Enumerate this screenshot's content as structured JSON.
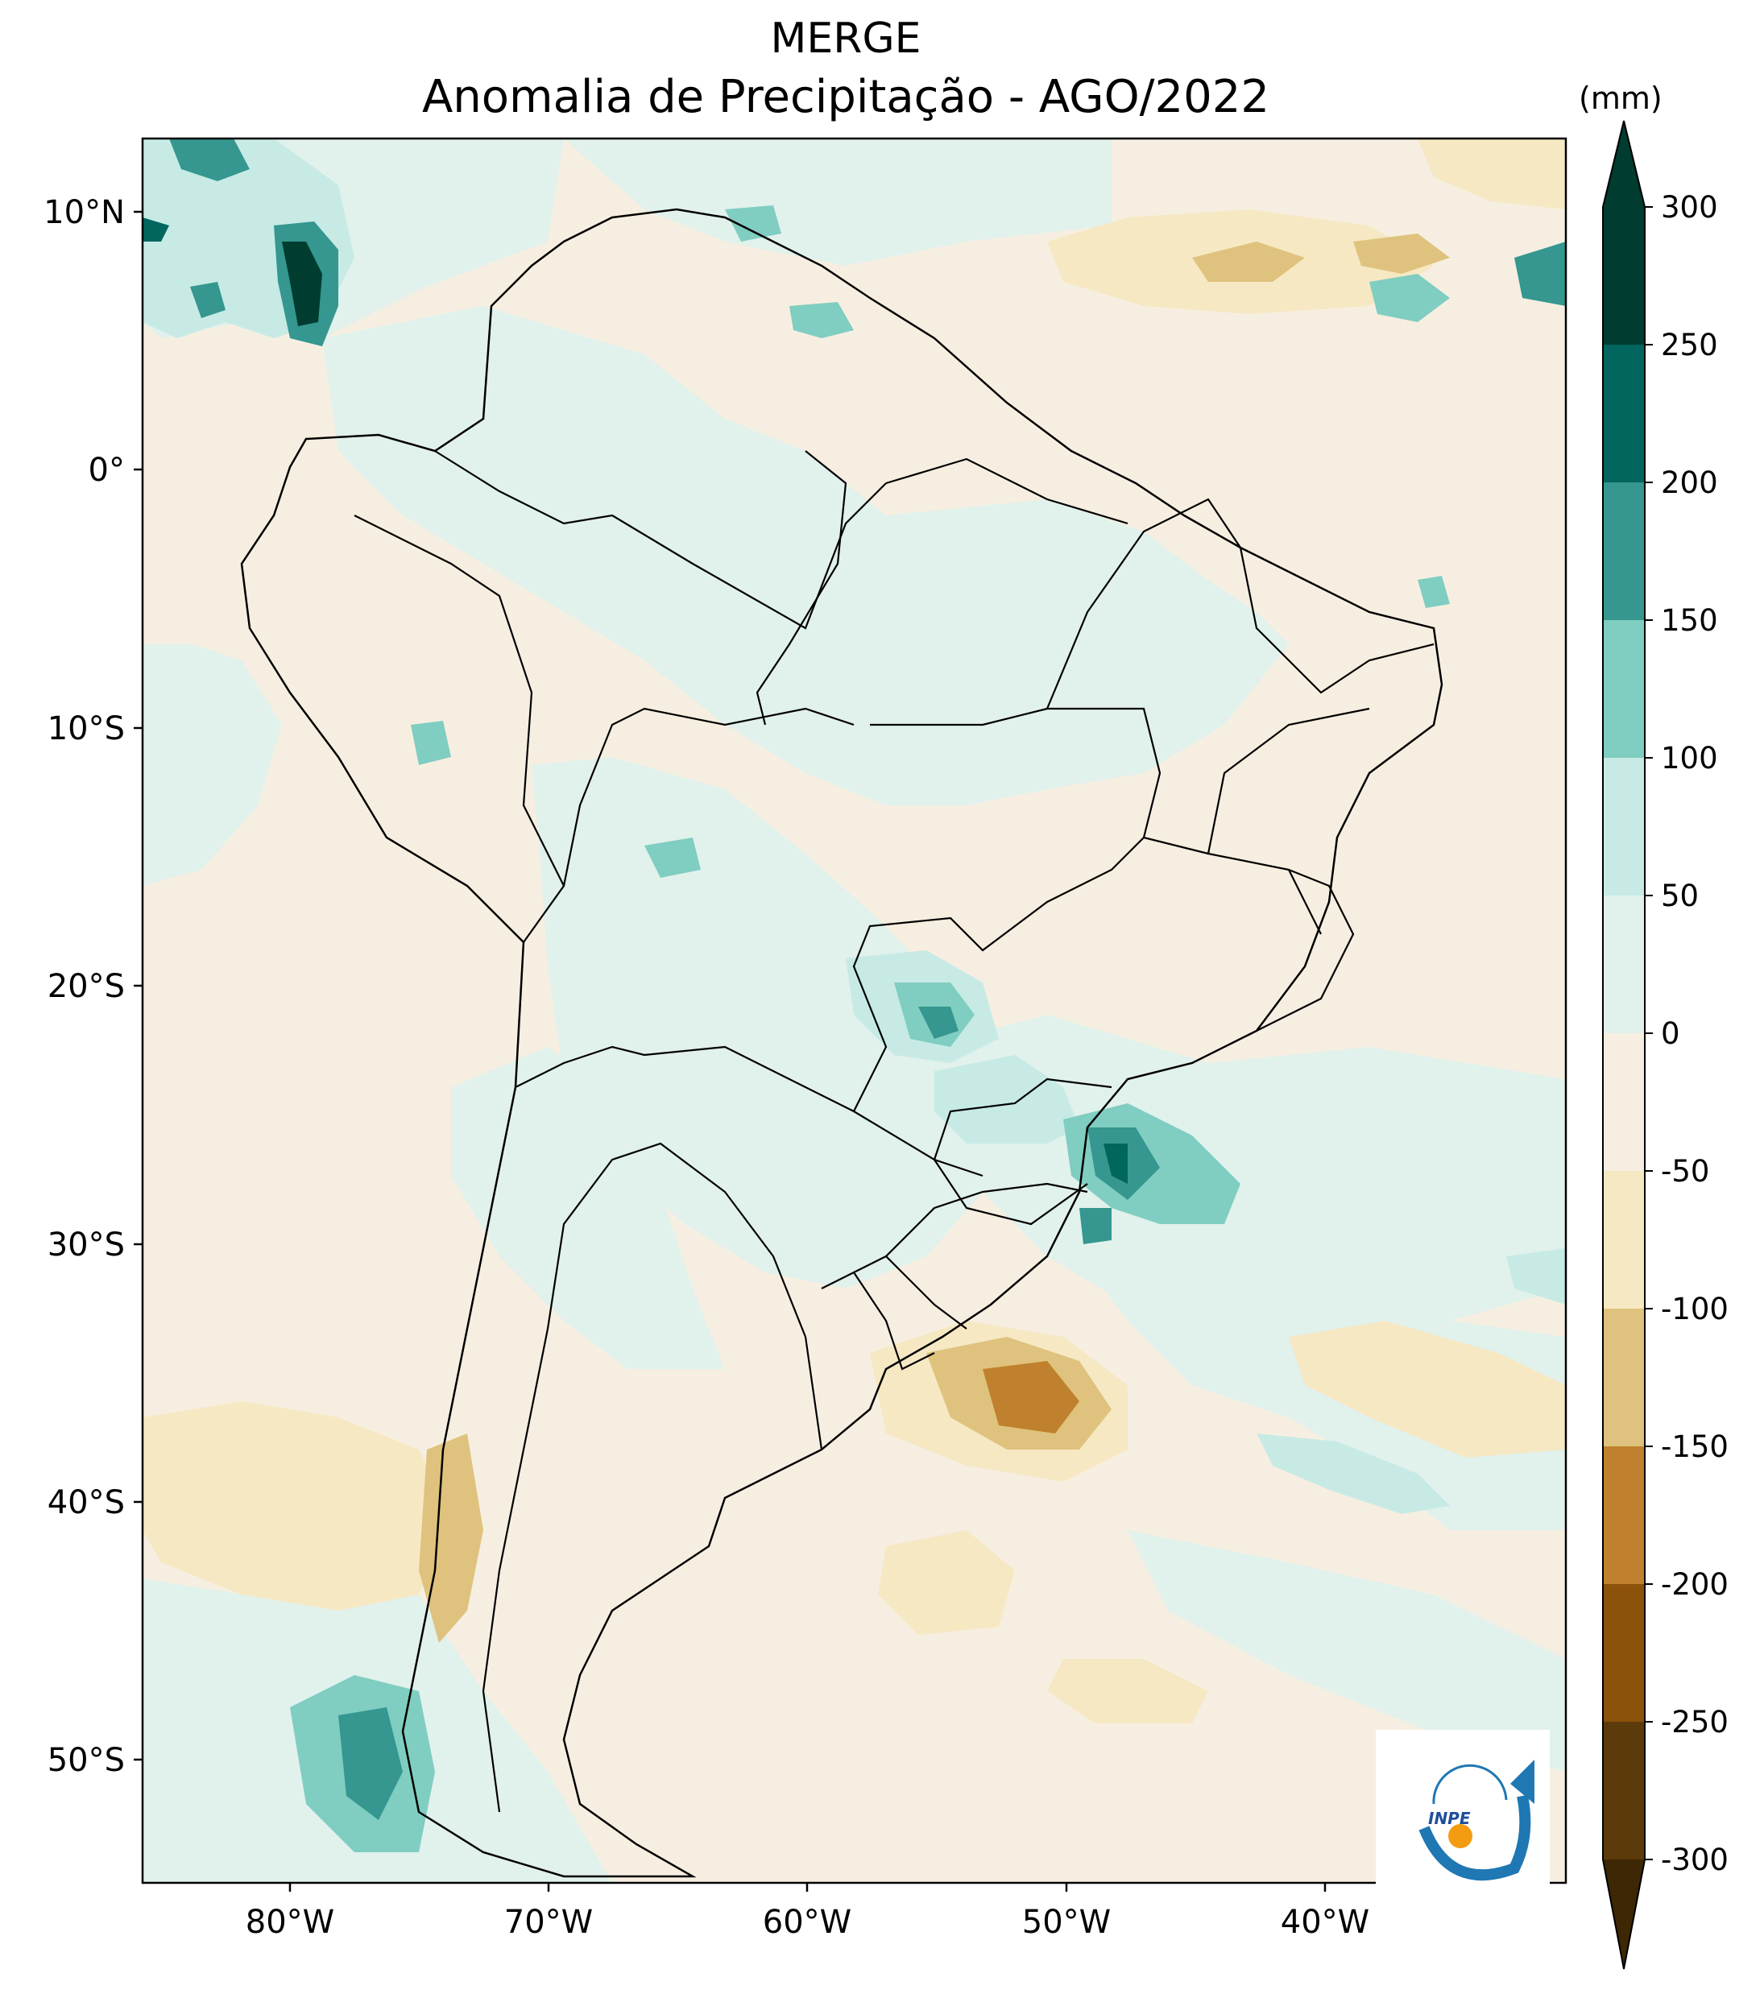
{
  "title": "MERGE",
  "subtitle": "Anomalia de Precipitação - AGO/2022",
  "unit": "(mm)",
  "lat_labels": [
    "10°N",
    "0°",
    "10°S",
    "20°S",
    "30°S",
    "40°S",
    "50°S"
  ],
  "lon_labels": [
    "80°W",
    "70°W",
    "60°W",
    "50°W",
    "40°W"
  ],
  "colorbar": {
    "tick_labels": [
      "300",
      "250",
      "200",
      "150",
      "100",
      "50",
      "0",
      "-50",
      "-100",
      "-150",
      "-200",
      "-250",
      "-300"
    ],
    "colors": [
      "#003c30",
      "#01665e",
      "#35978f",
      "#80cdc1",
      "#c7eae5",
      "#e1f1ec",
      "#f6efe1",
      "#f6e8c3",
      "#dfc27d",
      "#bf812d",
      "#8c510a",
      "#5c3a0a",
      "#3d2705"
    ]
  },
  "logo": {
    "text": "INPE"
  },
  "chart_data": {
    "type": "heatmap",
    "title": "MERGE",
    "subtitle": "Anomalia de Precipitação - AGO/2022",
    "unit": "(mm)",
    "region": "South America",
    "lon_range": [
      -85,
      -30
    ],
    "lat_range": [
      -56,
      13
    ],
    "levels": [
      -300,
      -250,
      -200,
      -150,
      -100,
      -50,
      0,
      50,
      100,
      150,
      200,
      250,
      300
    ],
    "extend": "both"
  }
}
